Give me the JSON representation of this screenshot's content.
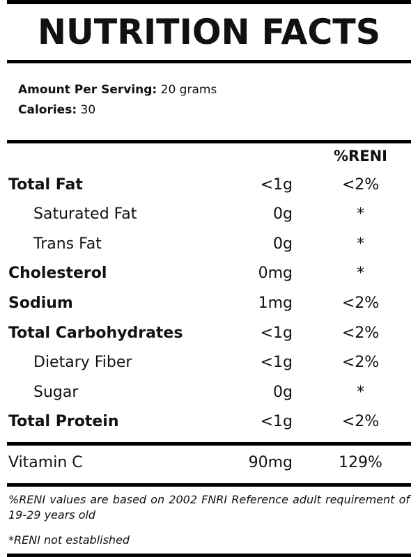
{
  "title": "NUTRITION FACTS",
  "serving": {
    "amount_label": "Amount Per Serving:",
    "amount_value": "20 grams",
    "calories_label": "Calories:",
    "calories_value": "30"
  },
  "reni_header": "%RENI",
  "nutrients": [
    {
      "name": "Total Fat",
      "amount": "<1g",
      "reni": "<2%"
    },
    {
      "name": "Saturated Fat",
      "amount": "0g",
      "reni": "*"
    },
    {
      "name": "Trans Fat",
      "amount": "0g",
      "reni": "*"
    },
    {
      "name": "Cholesterol",
      "amount": "0mg",
      "reni": "*"
    },
    {
      "name": "Sodium",
      "amount": "1mg",
      "reni": "<2%"
    },
    {
      "name": "Total Carbohydrates",
      "amount": "<1g",
      "reni": "<2%"
    },
    {
      "name": "Dietary Fiber",
      "amount": "<1g",
      "reni": "<2%"
    },
    {
      "name": "Sugar",
      "amount": "0g",
      "reni": "*"
    },
    {
      "name": "Total Protein",
      "amount": "<1g",
      "reni": "<2%"
    }
  ],
  "vitamin": {
    "name": "Vitamin C",
    "amount": "90mg",
    "reni": "129%"
  },
  "footnotes": {
    "basis": "%RENI values are based on 2002 FNRI Reference adult requirement of 19-29 years old",
    "not_established": "*RENI not established"
  }
}
